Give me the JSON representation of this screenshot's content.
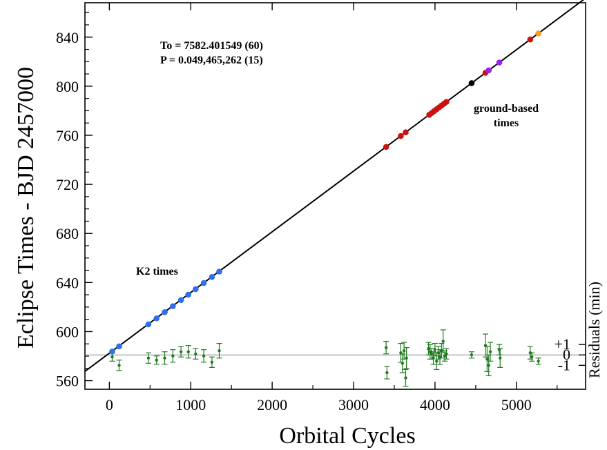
{
  "chart_data": {
    "type": "scatter",
    "xlabel": "Orbital Cycles",
    "ylabel": "Eclipse Times - BJD 2457000",
    "y2label": "Residuals (min)",
    "xlim": [
      -300,
      5850
    ],
    "ylim": [
      553,
      868
    ],
    "xticks": [
      0,
      1000,
      2000,
      3000,
      4000,
      5000
    ],
    "yticks": [
      560,
      600,
      640,
      680,
      720,
      760,
      800,
      840
    ],
    "residual_axis": {
      "baseline_y": 581,
      "scale_per_min": 8.5,
      "ticks": [
        {
          "label": "+1",
          "value": 1
        },
        {
          "label": "0",
          "value": 0
        },
        {
          "label": "-1",
          "value": -1
        }
      ]
    },
    "fit_line": {
      "T0": 7582.401549,
      "P": 0.049465262
    },
    "annotations": {
      "ephemeris_line1": "To = 7582.401549 (60)",
      "ephemeris_line2": "P = 0.049,465,262 (15)",
      "k2_label": "K2 times",
      "ground_label_line1": "ground-based",
      "ground_label_line2": "times"
    },
    "colors": {
      "k2": "#2f6ff0",
      "ground": "#cc1111",
      "black_point": "#000000",
      "magenta": "#a020f0",
      "orange": "#ff9a1f",
      "residual": "#1f7a1f",
      "fit_line": "#000000",
      "zero_line": "#888888"
    },
    "series": [
      {
        "name": "K2 times",
        "color_key": "k2",
        "x": [
          35,
          120,
          480,
          580,
          680,
          780,
          880,
          970,
          1060,
          1160,
          1260,
          1350
        ],
        "y": [
          583.8,
          588.0,
          605.9,
          610.8,
          615.8,
          620.7,
          625.7,
          630.1,
          634.6,
          639.6,
          644.5,
          648.9
        ]
      },
      {
        "name": "ground-based times",
        "color_key": "ground",
        "x": [
          3400,
          3580,
          3640,
          3930,
          3960,
          3990,
          4020,
          4050,
          4080,
          4110,
          4140,
          4620,
          5170
        ],
        "y": [
          750.5,
          759.4,
          762.4,
          776.7,
          778.2,
          779.7,
          781.2,
          782.7,
          784.2,
          785.7,
          787.2,
          810.9,
          838.1
        ]
      },
      {
        "name": "",
        "color_key": "black_point",
        "x": [
          4450
        ],
        "y": [
          802.5
        ]
      },
      {
        "name": "",
        "color_key": "magenta",
        "x": [
          4660,
          4790
        ],
        "y": [
          812.9,
          819.3
        ]
      },
      {
        "name": "",
        "color_key": "orange",
        "x": [
          5270
        ],
        "y": [
          843.0
        ]
      }
    ],
    "residuals": {
      "x": [
        35,
        120,
        480,
        580,
        680,
        780,
        880,
        970,
        1060,
        1160,
        1260,
        1350,
        3400,
        3410,
        3580,
        3600,
        3620,
        3640,
        3650,
        3920,
        3940,
        3960,
        3980,
        4000,
        4020,
        4040,
        4060,
        4080,
        4100,
        4120,
        4140,
        4450,
        4620,
        4640,
        4660,
        4680,
        4790,
        4800,
        5170,
        5190,
        5270
      ],
      "y": [
        -0.2,
        -1.0,
        -0.3,
        -0.5,
        -0.3,
        -0.1,
        0.3,
        0.3,
        0.1,
        -0.1,
        -0.7,
        0.4,
        0.7,
        -1.7,
        0.2,
        -0.8,
        0.4,
        -2.2,
        -0.3,
        0.6,
        0.3,
        0.1,
        -0.3,
        0.5,
        -0.6,
        0.2,
        -0.2,
        0.4,
        1.3,
        -0.1,
        0.1,
        0.0,
        0.9,
        -0.4,
        -1.0,
        0.3,
        0.5,
        -0.3,
        0.2,
        -0.2,
        -0.6
      ],
      "err": [
        0.4,
        0.5,
        0.5,
        0.4,
        0.6,
        0.6,
        0.5,
        0.6,
        0.5,
        0.6,
        0.5,
        0.7,
        0.6,
        0.6,
        0.9,
        0.9,
        0.8,
        0.8,
        1.0,
        0.6,
        0.7,
        0.5,
        0.6,
        0.6,
        0.8,
        0.6,
        0.7,
        0.7,
        1.1,
        0.5,
        0.5,
        0.3,
        1.1,
        1.2,
        1.0,
        0.9,
        0.5,
        0.9,
        0.6,
        0.4,
        0.3
      ]
    }
  }
}
